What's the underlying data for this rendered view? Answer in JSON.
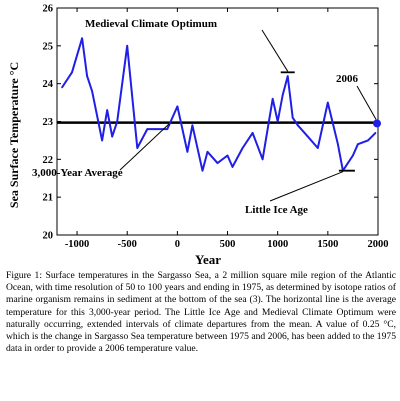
{
  "chart_data": {
    "type": "line",
    "xlabel": "Year",
    "ylabel": "Sea Surface Temperature °C",
    "xlim": [
      -1200,
      2000
    ],
    "ylim": [
      20,
      26
    ],
    "xticks": [
      -1000,
      -500,
      0,
      500,
      1000,
      1500,
      2000
    ],
    "xtick_labels": [
      "-1000",
      "-500",
      "0",
      "500",
      "1000",
      "1500",
      "2000"
    ],
    "yticks": [
      20,
      21,
      22,
      23,
      24,
      25,
      26
    ],
    "ytick_labels": [
      "20",
      "21",
      "22",
      "23",
      "24",
      "25",
      "26"
    ],
    "series": [
      {
        "color": "#1f1fe6",
        "x": [
          -1150,
          -1050,
          -950,
          -900,
          -850,
          -750,
          -700,
          -650,
          -600,
          -500,
          -400,
          -300,
          -200,
          -100,
          0,
          100,
          150,
          250,
          300,
          400,
          500,
          550,
          650,
          750,
          850,
          950,
          1000,
          1050,
          1100,
          1150,
          1200,
          1300,
          1400,
          1500,
          1600,
          1650,
          1700,
          1750,
          1800,
          1900,
          1975
        ],
        "y": [
          23.9,
          24.3,
          25.2,
          24.2,
          23.8,
          22.5,
          23.3,
          22.6,
          23.0,
          25.0,
          22.3,
          22.8,
          22.8,
          22.8,
          23.4,
          22.2,
          22.9,
          21.7,
          22.2,
          21.9,
          22.1,
          21.8,
          22.3,
          22.7,
          22.0,
          23.6,
          23.0,
          23.7,
          24.2,
          23.1,
          22.9,
          22.6,
          22.3,
          23.5,
          22.4,
          21.7,
          21.9,
          22.1,
          22.4,
          22.5,
          22.7
        ]
      },
      {
        "color": "#000000",
        "x": [
          -1200,
          2000
        ],
        "y": [
          22.97,
          22.97
        ]
      }
    ],
    "highlight_point": {
      "x": 2006,
      "y": 22.95,
      "color": "#1f1fe6"
    },
    "annotations": [
      {
        "text": "Medieval Climate Optimum"
      },
      {
        "text": "2006"
      },
      {
        "text": "3,000-Year Average"
      },
      {
        "text": "Little Ice Age"
      }
    ]
  },
  "caption": "Figure 1: Surface temperatures in the Sargasso Sea, a 2 million square mile region of the Atlantic Ocean, with time resolution of 50 to 100 years and ending in 1975, as determined by isotope ratios of marine organism remains in sediment at the bottom of the sea (3). The horizontal line is the average temperature for this 3,000-year period. The Little Ice Age and Medieval Climate Optimum were naturally occurring, extended intervals of climate departures from the mean. A value of 0.25 °C, which is the change in Sargasso Sea temperature between 1975 and 2006, has been added to the 1975 data in order to provide a 2006 temperature value."
}
